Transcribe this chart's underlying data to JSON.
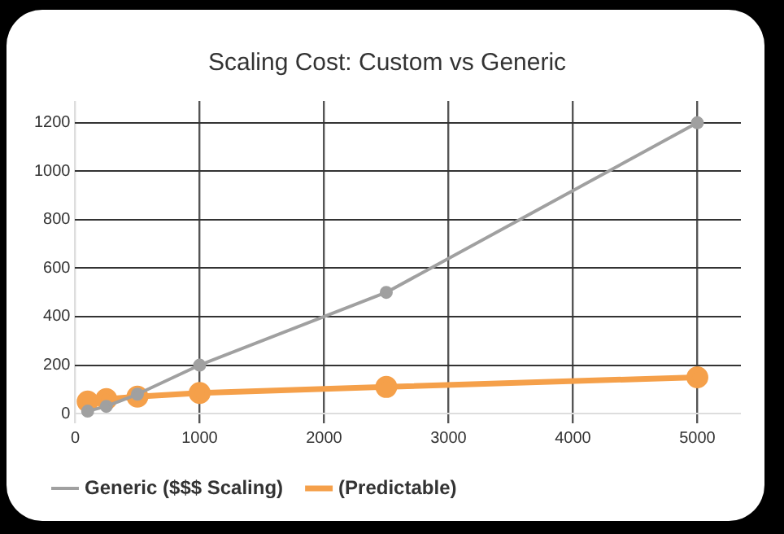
{
  "chart_data": {
    "type": "line",
    "title": "Scaling Cost: Custom vs Generic",
    "x": [
      100,
      250,
      500,
      1000,
      2500,
      5000
    ],
    "series": [
      {
        "name": "Generic ($$$ Scaling)",
        "color": "#a0a0a0",
        "values": [
          10,
          30,
          80,
          200,
          500,
          1200
        ]
      },
      {
        "name": "(Predictable)",
        "color": "#f5a04a",
        "values": [
          50,
          60,
          70,
          85,
          110,
          150
        ]
      }
    ],
    "xlim": [
      0,
      5350
    ],
    "xticks": [
      0,
      1000,
      2000,
      3000,
      4000,
      5000
    ],
    "ylim": [
      -40,
      1290
    ],
    "yticks": [
      0,
      200,
      400,
      600,
      800,
      1000,
      1200
    ],
    "grid": true,
    "legend": "bottom",
    "marker": "circle",
    "line_style": "solid"
  }
}
